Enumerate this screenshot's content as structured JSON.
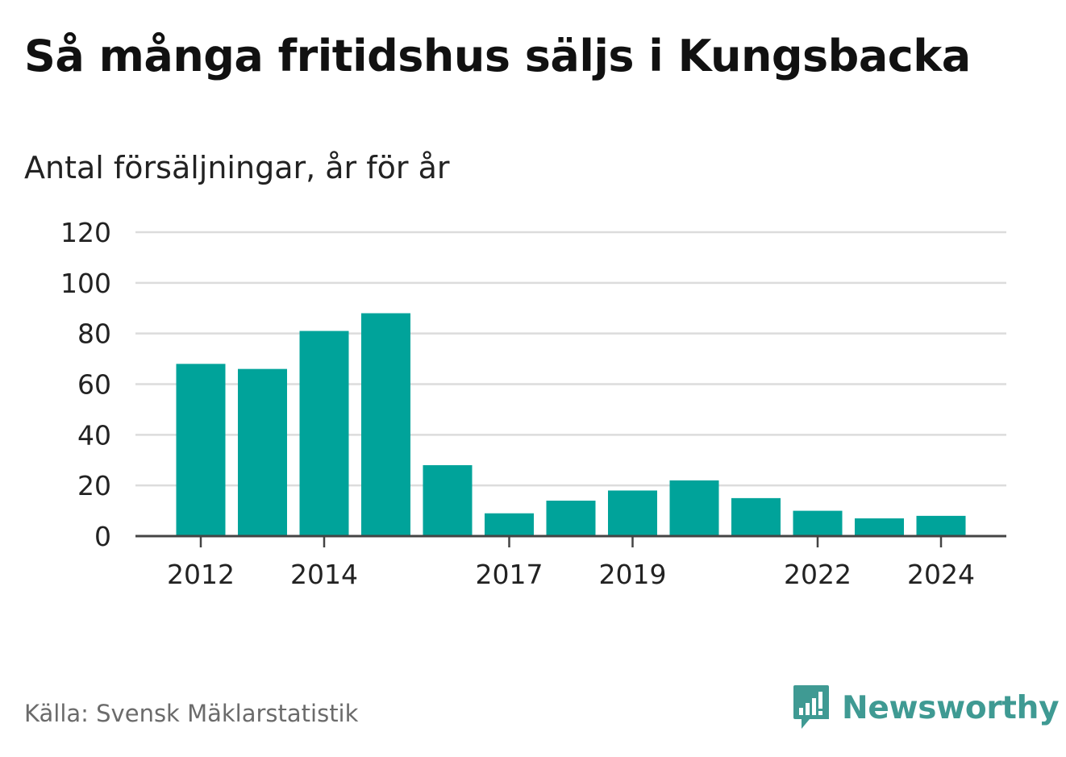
{
  "chart_data": {
    "type": "bar",
    "title": "Så många fritidshus säljs i Kungsbacka",
    "subtitle": "Antal försäljningar, år för år",
    "categories": [
      "2012",
      "2013",
      "2014",
      "2015",
      "2016",
      "2017",
      "2018",
      "2019",
      "2020",
      "2021",
      "2022",
      "2023",
      "2024"
    ],
    "values": [
      68,
      66,
      81,
      88,
      28,
      9,
      14,
      18,
      22,
      15,
      10,
      7,
      8
    ],
    "x_tick_labels": [
      "2012",
      "2014",
      "2017",
      "2019",
      "2022",
      "2024"
    ],
    "y_ticks": [
      0,
      20,
      40,
      60,
      80,
      100,
      120
    ],
    "ylim": [
      0,
      120
    ],
    "xlabel": "",
    "ylabel": "",
    "grid": true,
    "bar_color": "#00a39a",
    "gridline_color": "#dcdcdc",
    "axis_color": "#444444"
  },
  "footer": {
    "source": "Källa: Svensk Mäklarstatistik",
    "brand": "Newsworthy",
    "brand_color": "#3f9a93",
    "brand_icon": "newsworthy-logo-icon"
  }
}
